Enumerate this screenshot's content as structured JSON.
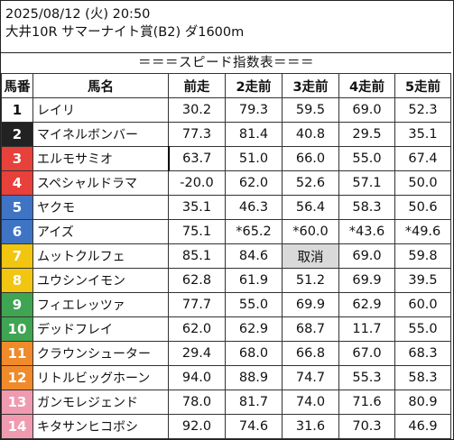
{
  "header": {
    "datetime": "2025/08/12 (火) 20:50",
    "race": "大井10R サマーナイト賞(B2) ダ1600m"
  },
  "banner": "＝＝＝スピード指数表＝＝＝",
  "columns": [
    "馬番",
    "馬名",
    "前走",
    "2走前",
    "3走前",
    "4走前",
    "5走前"
  ],
  "frame_colors": {
    "1": {
      "bg": "#ffffff",
      "fg": "#111111"
    },
    "2": {
      "bg": "#222222",
      "fg": "#ffffff"
    },
    "3": {
      "bg": "#e8403a",
      "fg": "#ffffff"
    },
    "4": {
      "bg": "#3f74c4",
      "fg": "#ffffff"
    },
    "5": {
      "bg": "#f2c510",
      "fg": "#ffffff"
    },
    "6": {
      "bg": "#3fa553",
      "fg": "#ffffff"
    },
    "7": {
      "bg": "#f08a2a",
      "fg": "#ffffff"
    },
    "8": {
      "bg": "#f09ab0",
      "fg": "#ffffff"
    }
  },
  "rows": [
    {
      "num": "1",
      "frame": 1,
      "name": "レイリ",
      "v": [
        "30.2",
        "79.3",
        "59.5",
        "69.0",
        "52.3"
      ]
    },
    {
      "num": "2",
      "frame": 2,
      "name": "マイネルボンバー",
      "v": [
        "77.3",
        "81.4",
        "40.8",
        "29.5",
        "35.1"
      ]
    },
    {
      "num": "3",
      "frame": 3,
      "name": "エルモサミオ",
      "v": [
        "63.7",
        "51.0",
        "66.0",
        "55.0",
        "67.4"
      ]
    },
    {
      "num": "4",
      "frame": 3,
      "name": "スペシャルドラマ",
      "v": [
        "-20.0",
        "62.0",
        "52.6",
        "57.1",
        "50.0"
      ]
    },
    {
      "num": "5",
      "frame": 4,
      "name": "ヤクモ",
      "v": [
        "35.1",
        "46.3",
        "56.4",
        "58.3",
        "50.6"
      ]
    },
    {
      "num": "6",
      "frame": 4,
      "name": "アイズ",
      "v": [
        "75.1",
        "*65.2",
        "*60.0",
        "*43.6",
        "*49.6"
      ]
    },
    {
      "num": "7",
      "frame": 5,
      "name": "ムットクルフェ",
      "v": [
        "85.1",
        "84.6",
        "取消",
        "69.0",
        "59.8"
      ]
    },
    {
      "num": "8",
      "frame": 5,
      "name": "ユウシンイモン",
      "v": [
        "62.8",
        "61.9",
        "51.2",
        "69.9",
        "39.5"
      ]
    },
    {
      "num": "9",
      "frame": 6,
      "name": "フィエレッツァ",
      "v": [
        "77.7",
        "55.0",
        "69.9",
        "62.9",
        "60.0"
      ]
    },
    {
      "num": "10",
      "frame": 6,
      "name": "デッドフレイ",
      "v": [
        "62.0",
        "62.9",
        "68.7",
        "11.7",
        "55.0"
      ]
    },
    {
      "num": "11",
      "frame": 7,
      "name": "クラウンシューター",
      "v": [
        "29.4",
        "68.0",
        "66.8",
        "67.0",
        "68.3"
      ]
    },
    {
      "num": "12",
      "frame": 7,
      "name": "リトルビッグホーン",
      "v": [
        "94.0",
        "88.9",
        "74.7",
        "55.3",
        "58.3"
      ]
    },
    {
      "num": "13",
      "frame": 8,
      "name": "ガンモレジェンド",
      "v": [
        "78.0",
        "81.7",
        "74.0",
        "71.6",
        "80.9"
      ]
    },
    {
      "num": "14",
      "frame": 8,
      "name": "キタサンヒコボシ",
      "v": [
        "92.0",
        "74.6",
        "31.6",
        "70.3",
        "46.9"
      ]
    }
  ]
}
